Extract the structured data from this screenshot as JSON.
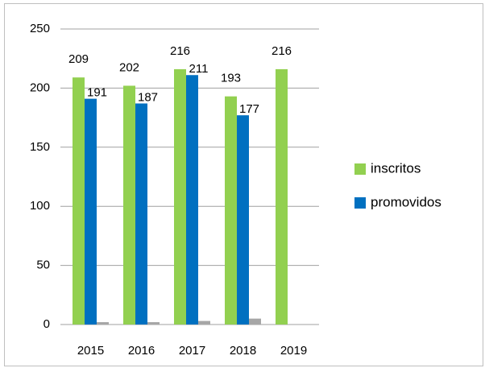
{
  "chart_data": {
    "type": "bar",
    "categories": [
      "2015",
      "2016",
      "2017",
      "2018",
      "2019"
    ],
    "series": [
      {
        "name": "inscritos",
        "color": "#92d050",
        "values": [
          209,
          202,
          216,
          193,
          216
        ]
      },
      {
        "name": "promovidos",
        "color": "#0070c0",
        "values": [
          191,
          187,
          211,
          177,
          null
        ]
      },
      {
        "color": "#a6a6a6",
        "values": [
          2,
          2,
          3,
          5,
          null
        ]
      }
    ],
    "ylim": [
      0,
      250
    ],
    "yticks": [
      0,
      50,
      100,
      150,
      200,
      250
    ],
    "grid": true,
    "legend": "right"
  }
}
